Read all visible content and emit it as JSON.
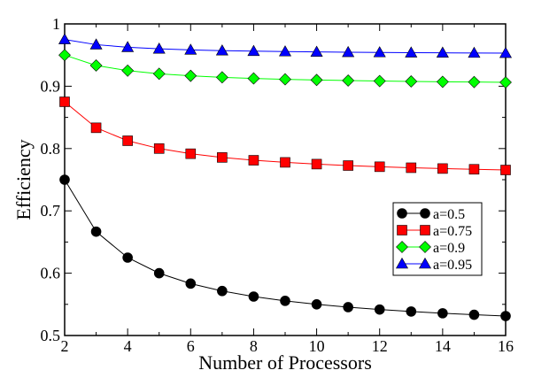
{
  "chart_data": {
    "type": "line",
    "title": "",
    "xlabel": "Number of Processors",
    "ylabel": "Efficiency",
    "xlim": [
      2,
      16
    ],
    "ylim": [
      0.5,
      1
    ],
    "x": [
      2,
      3,
      4,
      5,
      6,
      7,
      8,
      9,
      10,
      11,
      12,
      13,
      14,
      15,
      16
    ],
    "x_ticks": [
      "2",
      "4",
      "6",
      "8",
      "10",
      "12",
      "14",
      "16"
    ],
    "y_ticks": [
      "0.5",
      "0.6",
      "0.7",
      "0.8",
      "0.9",
      "1"
    ],
    "grid": false,
    "legend_position": "right-middle",
    "series": [
      {
        "name": "a=0.5",
        "color": "#000000",
        "marker": "circle",
        "values": [
          0.75,
          0.6667,
          0.625,
          0.6,
          0.5833,
          0.5714,
          0.5625,
          0.5556,
          0.55,
          0.5455,
          0.5417,
          0.5385,
          0.5357,
          0.5333,
          0.5312
        ]
      },
      {
        "name": "a=0.75",
        "color": "#ff0000",
        "marker": "square",
        "values": [
          0.875,
          0.8333,
          0.8125,
          0.8,
          0.7917,
          0.7857,
          0.7812,
          0.7778,
          0.775,
          0.7727,
          0.7708,
          0.7692,
          0.7679,
          0.7667,
          0.7656
        ]
      },
      {
        "name": "a=0.9",
        "color": "#00ff00",
        "marker": "diamond",
        "values": [
          0.95,
          0.9333,
          0.925,
          0.92,
          0.9167,
          0.9143,
          0.9125,
          0.9111,
          0.91,
          0.9091,
          0.9083,
          0.9077,
          0.9071,
          0.9067,
          0.9062
        ]
      },
      {
        "name": "a=0.95",
        "color": "#0000ff",
        "marker": "triangle",
        "values": [
          0.975,
          0.9667,
          0.9625,
          0.96,
          0.9583,
          0.9571,
          0.9563,
          0.9556,
          0.955,
          0.9545,
          0.9542,
          0.9538,
          0.9536,
          0.9533,
          0.9531
        ]
      }
    ]
  }
}
